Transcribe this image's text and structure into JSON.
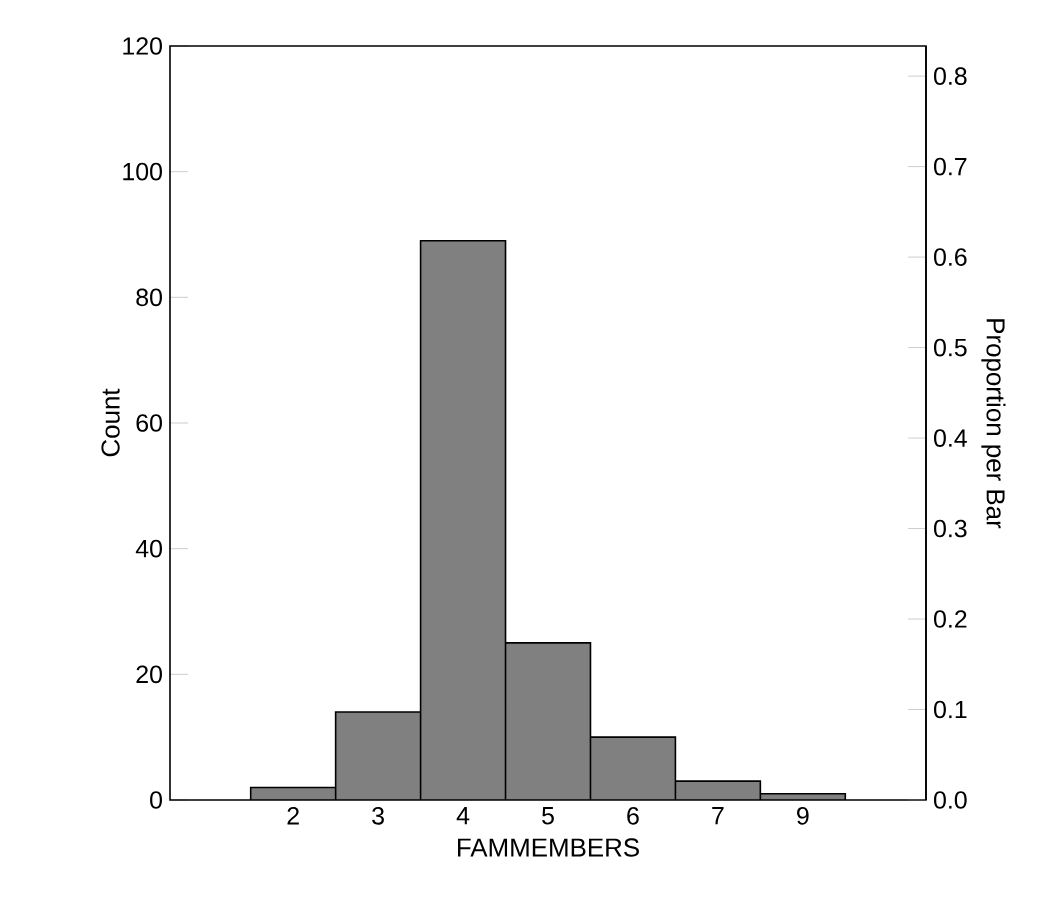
{
  "chart_data": {
    "type": "bar",
    "xlabel": "FAMMEMBERS",
    "ylabel": "Count",
    "y2label": "Proportion per Bar",
    "categories": [
      "2",
      "3",
      "4",
      "5",
      "6",
      "7",
      "9"
    ],
    "values": [
      2,
      14,
      89,
      25,
      10,
      3,
      1
    ],
    "color": "#808080",
    "ylim": [
      0,
      120
    ],
    "yticks": [
      0,
      20,
      40,
      60,
      80,
      100,
      120
    ],
    "y2lim": [
      0,
      0.8333
    ],
    "y2ticks": [
      {
        "value": 0,
        "label": "0.0"
      },
      0.1,
      0.2,
      0.3,
      0.4,
      0.5,
      0.6,
      0.7,
      0.8
    ]
  }
}
